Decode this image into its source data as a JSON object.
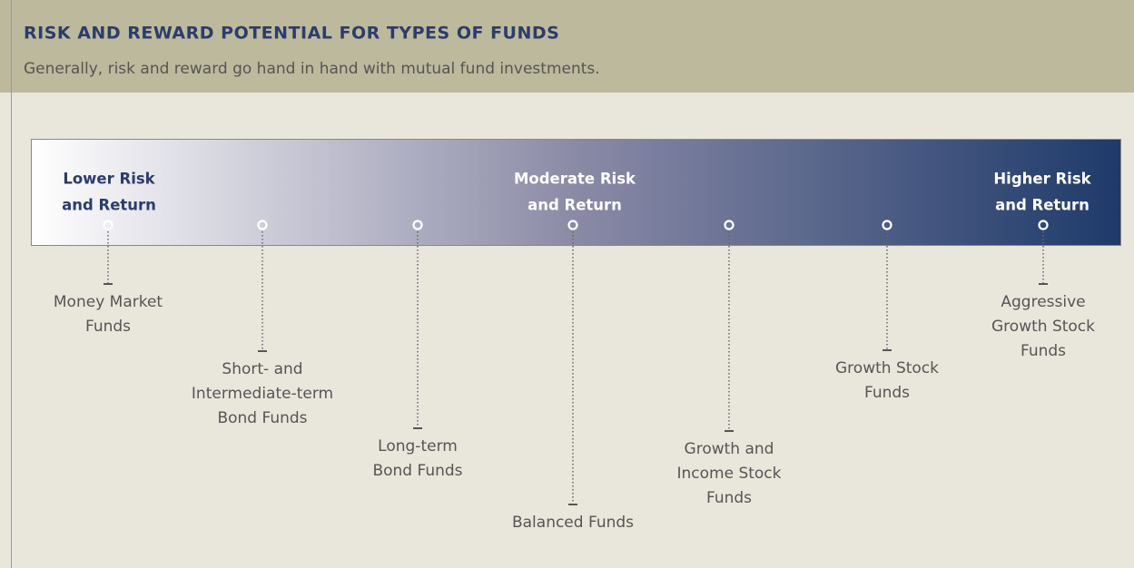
{
  "header": {
    "title": "RISK AND REWARD POTENTIAL FOR TYPES OF FUNDS",
    "subtitle": "Generally, risk and reward go hand in hand with mutual fund investments."
  },
  "scale": [
    {
      "lines": [
        "Lower Risk",
        "and Return"
      ]
    },
    {
      "lines": [
        "Moderate Risk",
        "and Return"
      ]
    },
    {
      "lines": [
        "Higher Risk",
        "and Return"
      ]
    }
  ],
  "funds": [
    {
      "lines": [
        "Money Market",
        "Funds"
      ]
    },
    {
      "lines": [
        "Short- and",
        "Intermediate-term",
        "Bond Funds"
      ]
    },
    {
      "lines": [
        "Long-term",
        "Bond Funds"
      ]
    },
    {
      "lines": [
        "Balanced Funds"
      ]
    },
    {
      "lines": [
        "Growth and",
        "Income Stock",
        "Funds"
      ]
    },
    {
      "lines": [
        "Growth Stock",
        "Funds"
      ]
    },
    {
      "lines": [
        "Aggressive",
        "Growth Stock",
        "Funds"
      ]
    }
  ]
}
